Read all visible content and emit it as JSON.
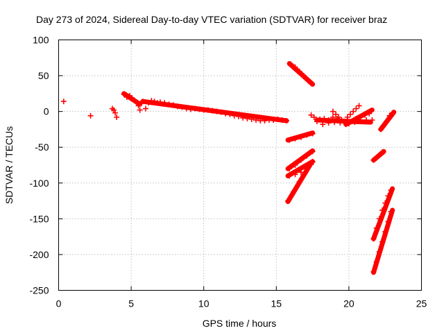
{
  "chart_data": {
    "type": "scatter",
    "title": "Day 273 of 2024, Sidereal Day-to-day VTEC variation (SDTVAR) for receiver braz",
    "xlabel": "GPS time / hours",
    "ylabel": "SDTVAR / TECUs",
    "xlim": [
      0,
      25
    ],
    "ylim": [
      -250,
      100
    ],
    "xticks": [
      0,
      5,
      10,
      15,
      20,
      25
    ],
    "yticks": [
      100,
      50,
      0,
      -50,
      -100,
      -150,
      -200,
      -250
    ],
    "grid": true,
    "marker": "+",
    "color": "#ff0000",
    "points": [
      [
        0.35,
        14
      ],
      [
        2.2,
        -6
      ],
      [
        3.7,
        4
      ],
      [
        3.8,
        2
      ],
      [
        3.9,
        -2
      ],
      [
        4.0,
        -8
      ],
      [
        4.5,
        24
      ],
      [
        4.7,
        20
      ],
      [
        4.9,
        22
      ],
      [
        5.0,
        18
      ],
      [
        5.2,
        16
      ],
      [
        5.4,
        12
      ],
      [
        5.5,
        8
      ],
      [
        5.6,
        2
      ],
      [
        5.8,
        14
      ],
      [
        6.0,
        4
      ],
      [
        6.2,
        12
      ],
      [
        6.4,
        15
      ],
      [
        6.6,
        14
      ],
      [
        6.8,
        12
      ],
      [
        7.0,
        13
      ],
      [
        7.3,
        12
      ],
      [
        7.6,
        10
      ],
      [
        7.9,
        9
      ],
      [
        8.2,
        7
      ],
      [
        8.5,
        6
      ],
      [
        8.8,
        4
      ],
      [
        9.1,
        3
      ],
      [
        9.4,
        4
      ],
      [
        9.7,
        3
      ],
      [
        10.0,
        2
      ],
      [
        10.3,
        2
      ],
      [
        10.6,
        1
      ],
      [
        10.9,
        0
      ],
      [
        11.2,
        -1
      ],
      [
        11.5,
        -3
      ],
      [
        11.8,
        -4
      ],
      [
        12.1,
        -6
      ],
      [
        12.4,
        -7
      ],
      [
        12.7,
        -9
      ],
      [
        13.0,
        -10
      ],
      [
        13.3,
        -11
      ],
      [
        13.6,
        -12
      ],
      [
        13.9,
        -13
      ],
      [
        14.2,
        -13
      ],
      [
        14.5,
        -12
      ],
      [
        14.8,
        -12
      ],
      [
        15.1,
        -11
      ],
      [
        15.4,
        -12
      ],
      [
        15.7,
        -13
      ],
      [
        16.0,
        66
      ],
      [
        16.3,
        62
      ],
      [
        16.6,
        56
      ],
      [
        16.9,
        50
      ],
      [
        17.2,
        43
      ],
      [
        17.4,
        39
      ],
      [
        15.9,
        -40
      ],
      [
        16.3,
        -38
      ],
      [
        16.7,
        -36
      ],
      [
        17.1,
        -33
      ],
      [
        17.5,
        -31
      ],
      [
        15.9,
        -80
      ],
      [
        16.3,
        -75
      ],
      [
        16.7,
        -68
      ],
      [
        17.1,
        -62
      ],
      [
        17.5,
        -56
      ],
      [
        15.9,
        -90
      ],
      [
        16.3,
        -88
      ],
      [
        16.7,
        -85
      ],
      [
        17.1,
        -80
      ],
      [
        17.5,
        -70
      ],
      [
        15.8,
        -125
      ],
      [
        16.2,
        -112
      ],
      [
        16.6,
        -98
      ],
      [
        17.0,
        -86
      ],
      [
        17.4,
        -74
      ],
      [
        17.4,
        -5
      ],
      [
        17.6,
        -8
      ],
      [
        17.8,
        -14
      ],
      [
        18.0,
        -11
      ],
      [
        18.3,
        -10
      ],
      [
        18.6,
        -12
      ],
      [
        18.9,
        -8
      ],
      [
        19.2,
        -10
      ],
      [
        19.5,
        -12
      ],
      [
        19.8,
        -14
      ],
      [
        18.2,
        -18
      ],
      [
        18.6,
        -16
      ],
      [
        19.0,
        -15
      ],
      [
        19.4,
        -16
      ],
      [
        19.8,
        -18
      ],
      [
        20.2,
        -14
      ],
      [
        20.5,
        -10
      ],
      [
        20.8,
        -8
      ],
      [
        21.1,
        -5
      ],
      [
        21.4,
        -3
      ],
      [
        19.9,
        -8
      ],
      [
        20.1,
        -4
      ],
      [
        20.3,
        0
      ],
      [
        20.5,
        4
      ],
      [
        20.7,
        8
      ],
      [
        20.0,
        -17
      ],
      [
        20.4,
        -15
      ],
      [
        20.8,
        -13
      ],
      [
        21.2,
        -12
      ],
      [
        21.6,
        -12
      ],
      [
        18.9,
        0
      ],
      [
        19.1,
        -4
      ],
      [
        19.3,
        -8
      ],
      [
        21.7,
        -68
      ],
      [
        21.9,
        -65
      ],
      [
        22.1,
        -61
      ],
      [
        22.3,
        -57
      ],
      [
        22.2,
        -25
      ],
      [
        22.4,
        -20
      ],
      [
        22.6,
        -14
      ],
      [
        22.8,
        -6
      ],
      [
        23.0,
        -2
      ],
      [
        21.7,
        -178
      ],
      [
        21.9,
        -163
      ],
      [
        22.1,
        -150
      ],
      [
        22.3,
        -138
      ],
      [
        22.5,
        -128
      ],
      [
        22.7,
        -118
      ],
      [
        22.9,
        -110
      ],
      [
        21.7,
        -224
      ],
      [
        21.9,
        -210
      ],
      [
        22.1,
        -196
      ],
      [
        22.3,
        -182
      ],
      [
        22.5,
        -168
      ],
      [
        22.7,
        -154
      ],
      [
        22.9,
        -140
      ]
    ],
    "segments": [
      {
        "x": [
          4.5,
          5.6
        ],
        "y": [
          25,
          10
        ]
      },
      {
        "x": [
          5.8,
          15.7
        ],
        "y": [
          14,
          -13
        ]
      },
      {
        "x": [
          15.9,
          17.5
        ],
        "y": [
          67,
          38
        ]
      },
      {
        "x": [
          15.8,
          17.5
        ],
        "y": [
          -40,
          -30
        ]
      },
      {
        "x": [
          15.8,
          17.5
        ],
        "y": [
          -80,
          -55
        ]
      },
      {
        "x": [
          15.8,
          17.5
        ],
        "y": [
          -90,
          -70
        ]
      },
      {
        "x": [
          15.8,
          17.4
        ],
        "y": [
          -126,
          -72
        ]
      },
      {
        "x": [
          17.8,
          21.5
        ],
        "y": [
          -12,
          -15
        ]
      },
      {
        "x": [
          19.8,
          21.6
        ],
        "y": [
          -18,
          2
        ]
      },
      {
        "x": [
          21.7,
          22.4
        ],
        "y": [
          -68,
          -56
        ]
      },
      {
        "x": [
          22.2,
          23.1
        ],
        "y": [
          -25,
          -1
        ]
      },
      {
        "x": [
          21.7,
          23.0
        ],
        "y": [
          -178,
          -108
        ]
      },
      {
        "x": [
          21.7,
          23.0
        ],
        "y": [
          -225,
          -138
        ]
      }
    ]
  }
}
